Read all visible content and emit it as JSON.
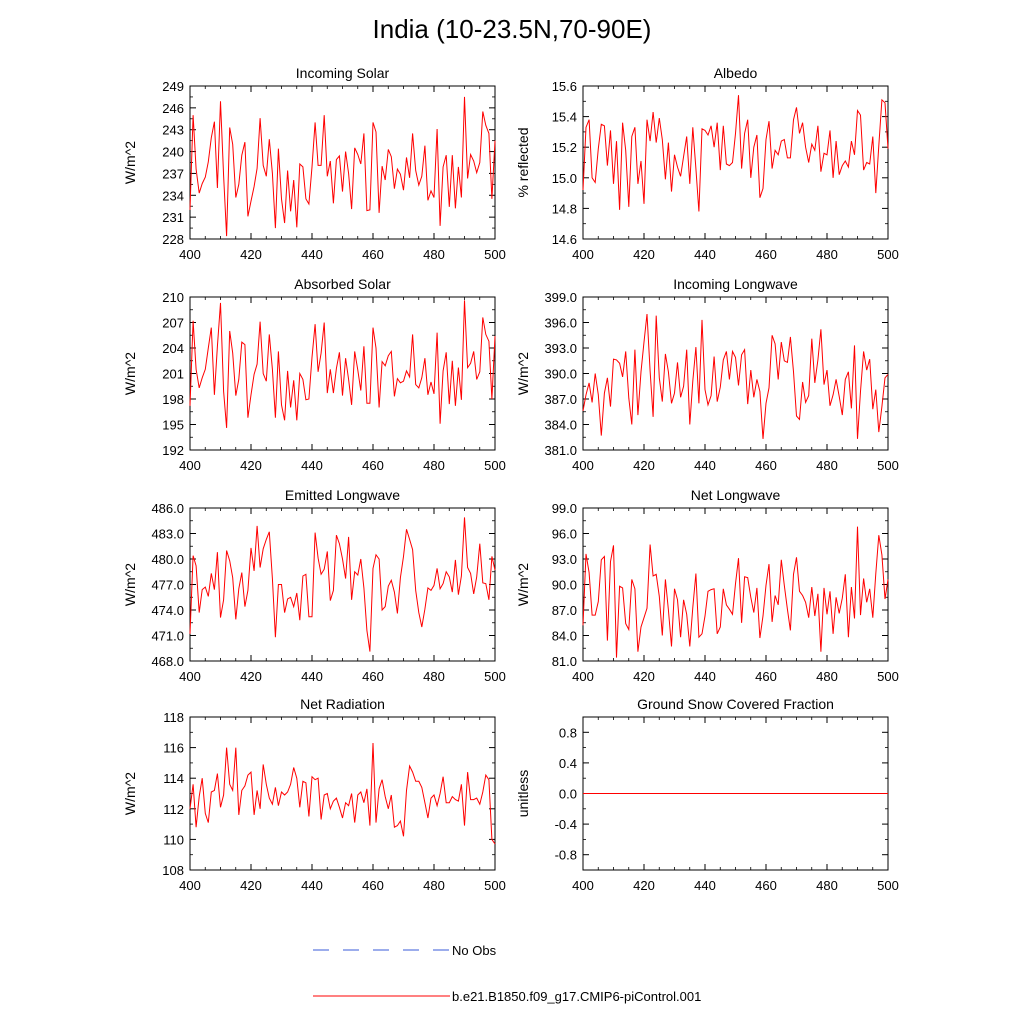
{
  "page": {
    "title": "India (10-23.5N,70-90E)",
    "legend": {
      "obs_label": "No Obs",
      "obs_color": "#3a5bd9",
      "model_label": "b.e21.B1850.f09_g17.CMIP6-piControl.001",
      "model_color": "#ff0000"
    }
  },
  "chart_data": [
    {
      "type": "line",
      "title": "Incoming Solar",
      "ylabel": "W/m^2",
      "xlim": [
        400,
        500
      ],
      "ylim": [
        228,
        249
      ],
      "xticks": [
        "400",
        "420",
        "440",
        "460",
        "480",
        "500"
      ],
      "yticks": [
        "228",
        "231",
        "234",
        "237",
        "240",
        "243",
        "246",
        "249"
      ],
      "series": [
        {
          "color": "#ff0000",
          "values": [
            232.0,
            245.0,
            237.6,
            234.3,
            235.6,
            236.5,
            238.6,
            241.9,
            244.1,
            235.0,
            246.9,
            236.7,
            228.4,
            243.3,
            241.0,
            233.7,
            235.5,
            239.5,
            241.3,
            231.1,
            233.2,
            235.2,
            237.7,
            244.6,
            238.1,
            236.6,
            241.7,
            237.0,
            229.5,
            240.4,
            233.5,
            230.2,
            237.4,
            231.8,
            236.1,
            229.6,
            238.3,
            237.9,
            233.5,
            232.8,
            237.9,
            244.0,
            238.1,
            238.1,
            245.0,
            236.6,
            238.7,
            232.9,
            238.9,
            239.4,
            234.5,
            240.0,
            237.0,
            232.1,
            240.5,
            239.6,
            238.3,
            242.5,
            231.9,
            232.0,
            244.0,
            242.7,
            231.6,
            238.0,
            236.1,
            240.3,
            239.3,
            234.9,
            237.6,
            236.9,
            234.7,
            239.2,
            236.4,
            242.5,
            237.4,
            235.4,
            236.6,
            240.8,
            233.3,
            234.6,
            233.7,
            243.1,
            229.8,
            237.9,
            239.5,
            232.4,
            239.5,
            232.2,
            237.9,
            233.7,
            247.5,
            236.3,
            239.6,
            238.7,
            237.1,
            238.5,
            245.5,
            243.6,
            242.5,
            233.5,
            241.5
          ]
        }
      ]
    },
    {
      "type": "line",
      "title": "Albedo",
      "ylabel": "% reflected",
      "xlim": [
        400,
        500
      ],
      "ylim": [
        14.6,
        15.6
      ],
      "xticks": [
        "400",
        "420",
        "440",
        "460",
        "480",
        "500"
      ],
      "yticks": [
        "14.6",
        "14.8",
        "15.0",
        "15.2",
        "15.4",
        "15.6"
      ],
      "series": [
        {
          "color": "#ff0000",
          "values": [
            14.92,
            15.33,
            15.38,
            15.0,
            14.97,
            15.19,
            15.35,
            15.34,
            15.08,
            15.31,
            14.96,
            15.24,
            14.79,
            15.36,
            15.18,
            14.81,
            15.27,
            15.33,
            14.96,
            15.11,
            14.83,
            15.38,
            15.24,
            15.43,
            15.23,
            15.39,
            15.25,
            14.99,
            15.23,
            14.91,
            15.15,
            15.07,
            15.01,
            15.14,
            15.27,
            14.96,
            15.33,
            15.06,
            14.78,
            15.32,
            15.31,
            15.28,
            15.34,
            15.2,
            15.36,
            15.05,
            15.34,
            15.09,
            15.08,
            15.1,
            15.29,
            15.54,
            15.06,
            15.29,
            15.38,
            15.0,
            15.2,
            15.28,
            14.87,
            14.93,
            15.25,
            15.37,
            15.06,
            15.18,
            15.15,
            15.24,
            15.25,
            15.13,
            15.13,
            15.38,
            15.46,
            15.29,
            15.36,
            15.2,
            15.1,
            15.22,
            15.18,
            15.34,
            15.04,
            15.16,
            15.15,
            15.31,
            15.0,
            15.24,
            15.02,
            15.08,
            15.11,
            15.07,
            15.24,
            15.15,
            15.44,
            15.41,
            15.05,
            15.1,
            15.09,
            15.27,
            14.9,
            15.21,
            15.51,
            15.49,
            15.19
          ]
        }
      ]
    },
    {
      "type": "line",
      "title": "Absorbed Solar",
      "ylabel": "W/m^2",
      "xlim": [
        400,
        500
      ],
      "ylim": [
        192,
        210
      ],
      "xticks": [
        "400",
        "420",
        "440",
        "460",
        "480",
        "500"
      ],
      "yticks": [
        "192",
        "195",
        "198",
        "201",
        "204",
        "207",
        "210"
      ],
      "series": [
        {
          "color": "#ff0000",
          "values": [
            197.2,
            207.2,
            201.5,
            199.3,
            200.5,
            201.5,
            204.0,
            206.4,
            198.5,
            204.2,
            209.3,
            198.9,
            194.6,
            206.0,
            203.4,
            198.4,
            200.3,
            204.7,
            204.4,
            195.8,
            198.5,
            200.9,
            202.1,
            207.1,
            201.0,
            200.1,
            205.6,
            201.5,
            195.8,
            203.6,
            197.3,
            195.5,
            201.3,
            197.0,
            200.2,
            195.5,
            201.0,
            200.3,
            197.9,
            198.0,
            202.9,
            206.8,
            201.2,
            203.4,
            207.0,
            198.7,
            201.5,
            198.7,
            201.6,
            203.5,
            198.4,
            202.8,
            200.3,
            197.3,
            203.6,
            201.4,
            199.0,
            204.2,
            197.5,
            197.5,
            206.4,
            204.0,
            197.0,
            202.4,
            201.9,
            203.1,
            203.6,
            198.3,
            200.4,
            199.9,
            200.1,
            201.3,
            200.6,
            205.6,
            199.7,
            199.3,
            200.5,
            202.8,
            198.5,
            200.0,
            198.6,
            205.8,
            195.1,
            201.3,
            203.5,
            197.4,
            202.5,
            197.2,
            201.7,
            197.9,
            209.6,
            201.7,
            202.2,
            203.6,
            200.3,
            201.2,
            207.6,
            205.6,
            204.8,
            198.0,
            205.4
          ]
        }
      ]
    },
    {
      "type": "line",
      "title": "Incoming Longwave",
      "ylabel": "W/m^2",
      "xlim": [
        400,
        500
      ],
      "ylim": [
        381.0,
        399.0
      ],
      "xticks": [
        "400",
        "420",
        "440",
        "460",
        "480",
        "500"
      ],
      "yticks": [
        "381.0",
        "384.0",
        "387.0",
        "390.0",
        "393.0",
        "396.0",
        "399.0"
      ],
      "series": [
        {
          "color": "#ff0000",
          "values": [
            385.6,
            387.5,
            388.9,
            386.6,
            390.0,
            387.5,
            382.7,
            387.7,
            389.5,
            386.1,
            391.7,
            391.6,
            391.2,
            389.6,
            392.6,
            387.1,
            384.0,
            392.8,
            385.1,
            390.2,
            393.7,
            397.0,
            390.3,
            384.9,
            396.8,
            389.5,
            386.7,
            392.3,
            390.2,
            386.5,
            387.7,
            391.3,
            387.2,
            388.5,
            392.8,
            384.0,
            389.1,
            393.1,
            386.5,
            396.3,
            388.1,
            386.3,
            387.4,
            392.0,
            386.7,
            388.4,
            391.6,
            392.6,
            389.3,
            392.6,
            391.9,
            388.6,
            392.2,
            392.8,
            386.4,
            390.4,
            387.2,
            389.3,
            387.9,
            382.3,
            386.5,
            388.3,
            394.5,
            393.5,
            389.3,
            393.7,
            391.5,
            391.3,
            394.3,
            390.2,
            385.0,
            384.6,
            389.0,
            386.6,
            387.4,
            394.1,
            388.9,
            391.6,
            395.2,
            388.7,
            390.4,
            386.2,
            387.5,
            389.3,
            387.3,
            385.1,
            389.3,
            390.2,
            385.9,
            393.3,
            382.3,
            387.9,
            392.6,
            390.4,
            391.7,
            385.8,
            388.1,
            383.1,
            386.1,
            389.5,
            389.9
          ]
        }
      ]
    },
    {
      "type": "line",
      "title": "Emitted Longwave",
      "ylabel": "W/m^2",
      "xlim": [
        400,
        500
      ],
      "ylim": [
        468.0,
        486.0
      ],
      "xticks": [
        "400",
        "420",
        "440",
        "460",
        "480",
        "500"
      ],
      "yticks": [
        "468.0",
        "471.0",
        "474.0",
        "477.0",
        "480.0",
        "483.0",
        "486.0"
      ],
      "series": [
        {
          "color": "#ff0000",
          "values": [
            471.2,
            480.4,
            479.2,
            473.7,
            476.4,
            476.7,
            475.6,
            478.3,
            476.4,
            480.8,
            473.1,
            475.2,
            481.0,
            479.8,
            477.8,
            472.9,
            476.5,
            478.4,
            474.4,
            476.3,
            481.3,
            478.6,
            483.9,
            479.0,
            481.2,
            482.3,
            483.2,
            477.7,
            470.8,
            477.0,
            477.0,
            473.7,
            475.3,
            475.5,
            474.4,
            476.0,
            472.8,
            478.0,
            478.2,
            473.2,
            473.2,
            483.1,
            480.1,
            478.2,
            478.8,
            480.9,
            475.1,
            476.3,
            482.8,
            481.8,
            480.0,
            477.7,
            482.6,
            475.2,
            478.5,
            478.1,
            480.0,
            476.6,
            471.6,
            469.1,
            478.9,
            480.5,
            480.0,
            474.0,
            474.4,
            476.8,
            477.5,
            476.1,
            473.6,
            477.8,
            480.3,
            483.5,
            482.3,
            481.1,
            476.3,
            473.7,
            472.0,
            474.1,
            476.6,
            476.3,
            476.9,
            478.9,
            476.5,
            477.1,
            478.5,
            477.9,
            476.1,
            479.9,
            475.8,
            478.0,
            484.9,
            479.0,
            478.3,
            475.9,
            477.9,
            481.8,
            477.2,
            477.1,
            475.2,
            480.3,
            478.7
          ]
        }
      ]
    },
    {
      "type": "line",
      "title": "Net Longwave",
      "ylabel": "W/m^2",
      "xlim": [
        400,
        500
      ],
      "ylim": [
        81.0,
        99.0
      ],
      "xticks": [
        "400",
        "420",
        "440",
        "460",
        "480",
        "500"
      ],
      "yticks": [
        "81.0",
        "84.0",
        "87.0",
        "90.0",
        "93.0",
        "96.0",
        "99.0"
      ],
      "series": [
        {
          "color": "#ff0000",
          "values": [
            85.2,
            93.6,
            91.4,
            86.4,
            86.4,
            88.0,
            92.9,
            93.3,
            83.4,
            92.7,
            94.6,
            81.4,
            89.8,
            89.6,
            85.4,
            84.7,
            90.6,
            89.5,
            82.1,
            85.0,
            86.1,
            87.2,
            94.7,
            91.0,
            91.2,
            88.6,
            84.0,
            90.6,
            87.0,
            82.7,
            89.5,
            88.2,
            83.8,
            88.2,
            86.5,
            82.7,
            87.3,
            91.3,
            83.8,
            84.2,
            86.3,
            89.2,
            89.4,
            89.5,
            84.2,
            85.0,
            89.5,
            87.6,
            87.1,
            86.5,
            90.1,
            93.1,
            85.5,
            90.9,
            90.8,
            88.5,
            86.7,
            89.6,
            83.7,
            86.3,
            89.9,
            92.4,
            85.6,
            88.7,
            87.6,
            92.9,
            89.9,
            87.1,
            84.6,
            91.2,
            93.2,
            89.2,
            88.7,
            87.9,
            86.1,
            89.7,
            86.3,
            88.9,
            82.1,
            89.6,
            86.5,
            89.2,
            84.2,
            88.5,
            86.6,
            88.4,
            91.2,
            83.8,
            89.7,
            86.0,
            96.8,
            86.4,
            90.7,
            87.9,
            89.5,
            86.1,
            91.3,
            95.8,
            93.5,
            88.3,
            90.6
          ]
        }
      ]
    },
    {
      "type": "line",
      "title": "Net Radiation",
      "ylabel": "W/m^2",
      "xlim": [
        400,
        500
      ],
      "ylim": [
        108,
        118
      ],
      "xticks": [
        "400",
        "420",
        "440",
        "460",
        "480",
        "500"
      ],
      "yticks": [
        "108",
        "110",
        "112",
        "114",
        "116",
        "118"
      ],
      "series": [
        {
          "color": "#ff0000",
          "values": [
            112.0,
            113.6,
            110.8,
            112.8,
            114.0,
            111.7,
            111.1,
            113.1,
            113.2,
            114.3,
            112.1,
            112.9,
            116.0,
            113.6,
            113.2,
            116.0,
            111.6,
            113.2,
            113.5,
            114.2,
            114.4,
            111.6,
            113.2,
            112.0,
            114.9,
            113.6,
            112.7,
            112.3,
            113.4,
            112.2,
            113.1,
            112.9,
            113.1,
            113.6,
            114.7,
            114.0,
            112.1,
            113.8,
            113.7,
            111.5,
            114.1,
            113.9,
            114.0,
            111.3,
            112.9,
            113.0,
            112.0,
            112.5,
            112.7,
            112.1,
            111.4,
            112.4,
            112.2,
            113.0,
            111.1,
            112.9,
            113.1,
            112.4,
            113.3,
            110.9,
            116.3,
            111.1,
            113.3,
            113.9,
            112.8,
            112.0,
            112.9,
            110.8,
            110.9,
            111.2,
            110.2,
            113.2,
            114.8,
            114.4,
            113.8,
            113.8,
            113.4,
            112.4,
            111.4,
            112.7,
            112.9,
            112.2,
            113.0,
            114.1,
            112.4,
            112.4,
            112.8,
            112.6,
            112.5,
            113.6,
            110.9,
            114.4,
            112.6,
            112.6,
            112.7,
            112.3,
            113.1,
            114.2,
            113.9,
            110.0,
            109.7
          ]
        }
      ]
    },
    {
      "type": "line",
      "title": "Ground Snow Covered Fraction",
      "ylabel": "unitless",
      "xlim": [
        400,
        500
      ],
      "ylim": [
        -1.0,
        1.0
      ],
      "xticks": [
        "400",
        "420",
        "440",
        "460",
        "480",
        "500"
      ],
      "yticks": [
        "-0.8",
        "-0.4",
        "0.0",
        "0.4",
        "0.8"
      ],
      "ytick_values": [
        -0.8,
        -0.4,
        0.0,
        0.4,
        0.8
      ],
      "series": [
        {
          "color": "#ff0000",
          "values": [
            0.0,
            0.0
          ]
        }
      ]
    }
  ]
}
